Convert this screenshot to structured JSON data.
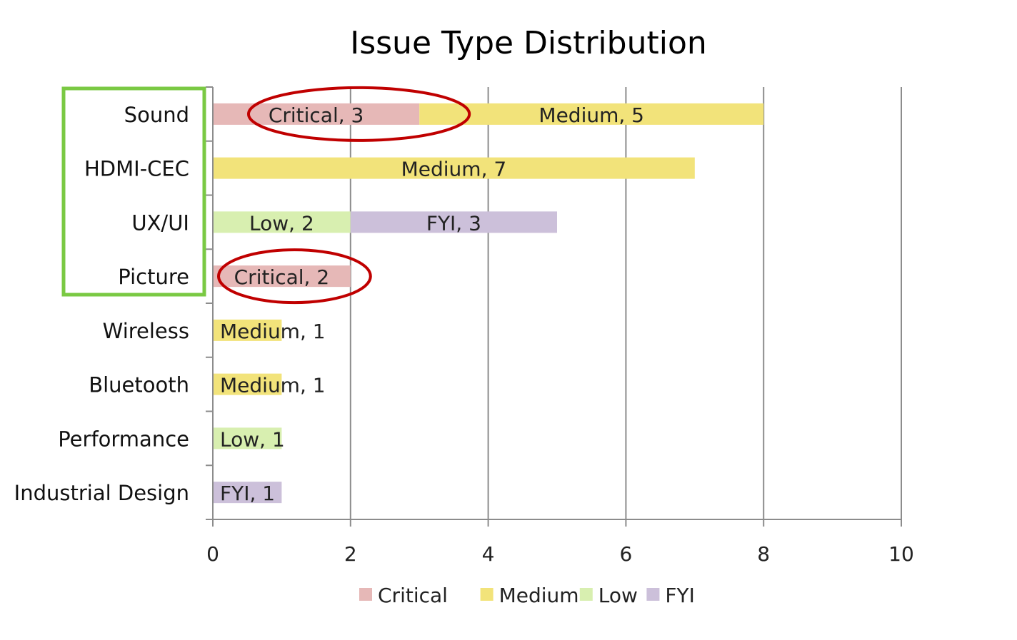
{
  "chart_data": {
    "type": "bar",
    "orientation": "horizontal",
    "stacked": true,
    "title": "Issue Type Distribution",
    "xlabel": "",
    "ylabel": "",
    "xlim": [
      0,
      10
    ],
    "x_ticks": [
      0,
      2,
      4,
      6,
      8,
      10
    ],
    "grid": "vertical",
    "legend_position": "bottom",
    "categories": [
      "Sound",
      "HDMI-CEC",
      "UX/UI",
      "Picture",
      "Wireless",
      "Bluetooth",
      "Performance",
      "Industrial Design"
    ],
    "series": [
      {
        "name": "Critical",
        "color": "#e6b8b7",
        "values": [
          3,
          0,
          0,
          2,
          0,
          0,
          0,
          0
        ],
        "data_labels": [
          "Critical, 3",
          "",
          "",
          "Critical, 2",
          "",
          "",
          "",
          ""
        ]
      },
      {
        "name": "Medium",
        "color": "#f2e37a",
        "values": [
          5,
          7,
          0,
          0,
          1,
          1,
          0,
          0
        ],
        "data_labels": [
          "Medium, 5",
          "Medium, 7",
          "",
          "",
          "Medium, 1",
          "Medium, 1",
          "",
          ""
        ]
      },
      {
        "name": "Low",
        "color": "#d8efb0",
        "values": [
          0,
          0,
          2,
          0,
          0,
          0,
          1,
          0
        ],
        "data_labels": [
          "",
          "",
          "Low, 2",
          "",
          "",
          "",
          "Low, 1",
          ""
        ]
      },
      {
        "name": "FYI",
        "color": "#ccc0da",
        "values": [
          0,
          0,
          3,
          0,
          0,
          0,
          0,
          1
        ],
        "data_labels": [
          "",
          "",
          "FYI, 3",
          "",
          "",
          "",
          "",
          "FYI, 1"
        ]
      }
    ],
    "annotations": [
      {
        "type": "ellipse-highlight",
        "target": "Sound / Critical",
        "color": "#c00000"
      },
      {
        "type": "ellipse-highlight",
        "target": "Picture / Critical",
        "color": "#c00000"
      },
      {
        "type": "box-highlight",
        "target": [
          "Sound",
          "HDMI-CEC",
          "UX/UI",
          "Picture"
        ],
        "color": "#7ac943"
      }
    ]
  }
}
